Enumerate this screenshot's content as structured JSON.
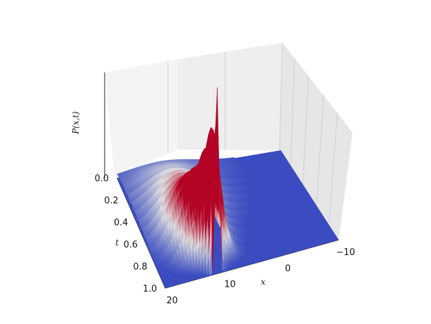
{
  "chart_data": {
    "type": "surface3d",
    "title": "",
    "xlabel": "x",
    "ylabel": "t",
    "zlabel": "P(x,t)",
    "x_ticks": [
      "20",
      "10",
      "0",
      "−10"
    ],
    "t_ticks": [
      "0.0",
      "0.2",
      "0.4",
      "0.6",
      "0.8",
      "1.0"
    ],
    "xlim": [
      -10,
      20
    ],
    "tlim": [
      0.0,
      1.0
    ],
    "colormap": "coolwarm",
    "colors": {
      "low": "#3b4cc0",
      "mid": "#dddddd",
      "high": "#b40426"
    },
    "grid": true,
    "surface": {
      "description_free": true,
      "center_x_vs_t": [
        [
          0.0,
          12.0
        ],
        [
          0.2,
          12.2
        ],
        [
          0.4,
          12.0
        ],
        [
          0.6,
          12.5
        ],
        [
          0.8,
          12.0
        ],
        [
          1.0,
          11.0
        ]
      ],
      "peak_height_vs_t": [
        [
          0.0,
          0.05
        ],
        [
          0.5,
          0.25
        ],
        [
          0.8,
          0.5
        ],
        [
          0.95,
          0.8
        ],
        [
          1.0,
          1.0
        ]
      ],
      "width_vs_t": [
        [
          0.0,
          6.0
        ],
        [
          0.5,
          4.0
        ],
        [
          0.9,
          2.0
        ],
        [
          1.0,
          0.3
        ]
      ],
      "oscillation_periods": 13
    }
  }
}
